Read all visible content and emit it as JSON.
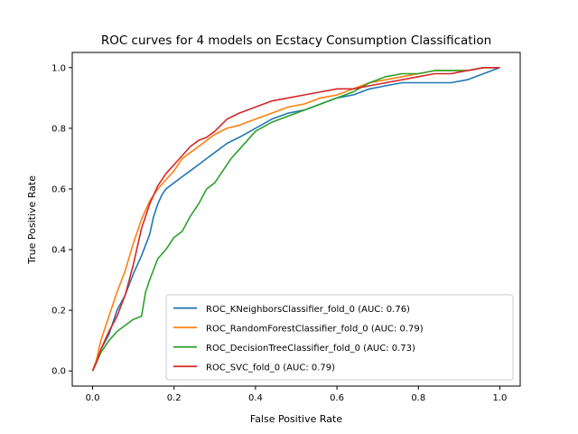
{
  "chart_data": {
    "type": "line",
    "title": "ROC curves for 4 models on Ecstacy Consumption Classification",
    "xlabel": "False Positive Rate",
    "ylabel": "True Positive Rate",
    "xlim": [
      -0.05,
      1.05
    ],
    "ylim": [
      -0.05,
      1.05
    ],
    "xticks": [
      0.0,
      0.2,
      0.4,
      0.6,
      0.8,
      1.0
    ],
    "yticks": [
      0.0,
      0.2,
      0.4,
      0.6,
      0.8,
      1.0
    ],
    "tick_labels": [
      "0.0",
      "0.2",
      "0.4",
      "0.6",
      "0.8",
      "1.0"
    ],
    "grid": false,
    "legend_position": "lower-right",
    "series": [
      {
        "name": "ROC_KNeighborsClassifier_fold_0 (AUC: 0.76)",
        "color": "#1f77b4",
        "x": [
          0.0,
          0.01,
          0.02,
          0.04,
          0.06,
          0.08,
          0.1,
          0.12,
          0.14,
          0.15,
          0.16,
          0.17,
          0.18,
          0.2,
          0.22,
          0.24,
          0.26,
          0.28,
          0.3,
          0.33,
          0.36,
          0.4,
          0.44,
          0.48,
          0.52,
          0.56,
          0.6,
          0.64,
          0.68,
          0.72,
          0.76,
          0.8,
          0.84,
          0.88,
          0.92,
          0.96,
          1.0
        ],
        "y": [
          0.0,
          0.03,
          0.07,
          0.12,
          0.2,
          0.25,
          0.32,
          0.38,
          0.45,
          0.51,
          0.55,
          0.58,
          0.6,
          0.62,
          0.64,
          0.66,
          0.68,
          0.7,
          0.72,
          0.75,
          0.77,
          0.8,
          0.83,
          0.85,
          0.86,
          0.88,
          0.9,
          0.91,
          0.93,
          0.94,
          0.95,
          0.95,
          0.95,
          0.95,
          0.96,
          0.98,
          1.0
        ]
      },
      {
        "name": "ROC_RandomForestClassifier_fold_0 (AUC: 0.79)",
        "color": "#ff7f0e",
        "x": [
          0.0,
          0.01,
          0.02,
          0.04,
          0.06,
          0.08,
          0.1,
          0.12,
          0.14,
          0.16,
          0.18,
          0.2,
          0.22,
          0.24,
          0.26,
          0.28,
          0.3,
          0.33,
          0.36,
          0.4,
          0.44,
          0.48,
          0.52,
          0.56,
          0.6,
          0.64,
          0.68,
          0.72,
          0.76,
          0.8,
          0.84,
          0.88,
          0.92,
          0.96,
          1.0
        ],
        "y": [
          0.0,
          0.04,
          0.1,
          0.18,
          0.26,
          0.33,
          0.42,
          0.5,
          0.56,
          0.6,
          0.63,
          0.66,
          0.7,
          0.72,
          0.74,
          0.76,
          0.78,
          0.8,
          0.81,
          0.83,
          0.85,
          0.87,
          0.88,
          0.9,
          0.91,
          0.93,
          0.95,
          0.96,
          0.97,
          0.98,
          0.99,
          0.99,
          0.99,
          1.0,
          1.0
        ]
      },
      {
        "name": "ROC_DecisionTreeClassifier_fold_0 (AUC: 0.73)",
        "color": "#2ca02c",
        "x": [
          0.0,
          0.02,
          0.04,
          0.06,
          0.08,
          0.1,
          0.12,
          0.13,
          0.14,
          0.16,
          0.18,
          0.2,
          0.22,
          0.24,
          0.26,
          0.28,
          0.3,
          0.32,
          0.34,
          0.36,
          0.38,
          0.4,
          0.44,
          0.48,
          0.52,
          0.56,
          0.6,
          0.64,
          0.68,
          0.72,
          0.76,
          0.8,
          0.84,
          0.88,
          0.92,
          0.96,
          1.0
        ],
        "y": [
          0.0,
          0.06,
          0.1,
          0.13,
          0.15,
          0.17,
          0.18,
          0.26,
          0.3,
          0.37,
          0.4,
          0.44,
          0.46,
          0.51,
          0.55,
          0.6,
          0.62,
          0.66,
          0.7,
          0.73,
          0.76,
          0.79,
          0.82,
          0.84,
          0.86,
          0.88,
          0.9,
          0.92,
          0.95,
          0.97,
          0.98,
          0.98,
          0.99,
          0.99,
          0.99,
          1.0,
          1.0
        ]
      },
      {
        "name": "ROC_SVC_fold_0 (AUC: 0.79)",
        "color": "#d62728",
        "x": [
          0.0,
          0.01,
          0.02,
          0.04,
          0.06,
          0.08,
          0.1,
          0.12,
          0.14,
          0.16,
          0.18,
          0.2,
          0.22,
          0.24,
          0.26,
          0.28,
          0.3,
          0.33,
          0.36,
          0.4,
          0.44,
          0.48,
          0.52,
          0.56,
          0.6,
          0.64,
          0.68,
          0.72,
          0.76,
          0.8,
          0.84,
          0.88,
          0.92,
          0.96,
          1.0
        ],
        "y": [
          0.0,
          0.03,
          0.07,
          0.13,
          0.18,
          0.25,
          0.35,
          0.47,
          0.55,
          0.61,
          0.65,
          0.68,
          0.71,
          0.74,
          0.76,
          0.77,
          0.79,
          0.83,
          0.85,
          0.87,
          0.89,
          0.9,
          0.91,
          0.92,
          0.93,
          0.93,
          0.94,
          0.95,
          0.96,
          0.97,
          0.98,
          0.98,
          0.99,
          1.0,
          1.0
        ]
      }
    ]
  }
}
